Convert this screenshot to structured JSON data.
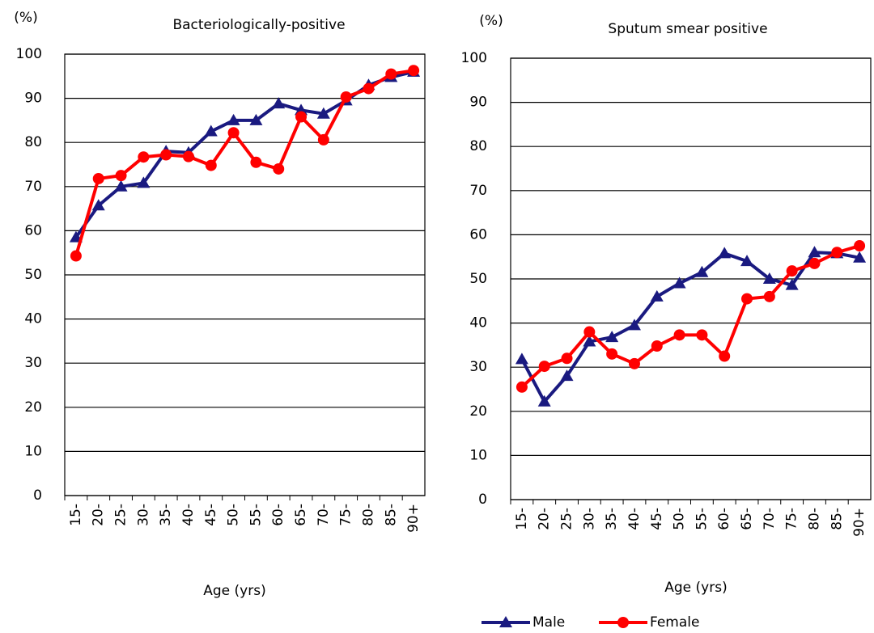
{
  "chart_data": [
    {
      "type": "line",
      "title": "Bacteriologically-positive",
      "y_unit": "(%)",
      "x_label": "Age (yrs)",
      "categories": [
        "15-",
        "20-",
        "25-",
        "30-",
        "35-",
        "40-",
        "45-",
        "50-",
        "55-",
        "60-",
        "65-",
        "70-",
        "75-",
        "80-",
        "85-",
        "90+"
      ],
      "series": [
        {
          "name": "Male",
          "color": "#1a1a80",
          "marker": "triangle",
          "values": [
            58.5,
            65.7,
            70,
            70.8,
            78,
            77.7,
            82.5,
            85,
            85,
            88.8,
            87.3,
            86.5,
            89.5,
            93,
            94.8,
            96
          ]
        },
        {
          "name": "Female",
          "color": "#ff0000",
          "marker": "circle",
          "values": [
            54.3,
            71.8,
            72.5,
            76.7,
            77.2,
            76.8,
            74.8,
            82.2,
            75.5,
            74,
            85.8,
            80.6,
            90.3,
            92.2,
            95.5,
            96.3
          ]
        }
      ],
      "ylim": [
        0,
        100
      ],
      "yticks": [
        0,
        10,
        20,
        30,
        40,
        50,
        60,
        70,
        80,
        90,
        100
      ],
      "grid": true
    },
    {
      "type": "line",
      "title": "Sputum smear positive",
      "y_unit": "(%)",
      "x_label": "Age (yrs)",
      "categories": [
        "15-",
        "20-",
        "25-",
        "30-",
        "35-",
        "40-",
        "45-",
        "50-",
        "55-",
        "60-",
        "65-",
        "70-",
        "75-",
        "80-",
        "85-",
        "90+"
      ],
      "series": [
        {
          "name": "Male",
          "color": "#1a1a80",
          "marker": "triangle",
          "values": [
            31.8,
            22.2,
            28,
            35.8,
            36.8,
            39.5,
            46,
            49,
            51.5,
            55.8,
            54,
            50,
            48.6,
            56,
            55.8,
            54.8
          ]
        },
        {
          "name": "Female",
          "color": "#ff0000",
          "marker": "circle",
          "values": [
            25.5,
            30.2,
            32,
            38,
            33,
            30.8,
            34.8,
            37.3,
            37.3,
            32.5,
            45.5,
            46,
            51.8,
            53.5,
            56,
            57.5
          ]
        }
      ],
      "ylim": [
        0,
        100
      ],
      "yticks": [
        0,
        10,
        20,
        30,
        40,
        50,
        60,
        70,
        80,
        90,
        100
      ],
      "grid": true
    }
  ]
}
